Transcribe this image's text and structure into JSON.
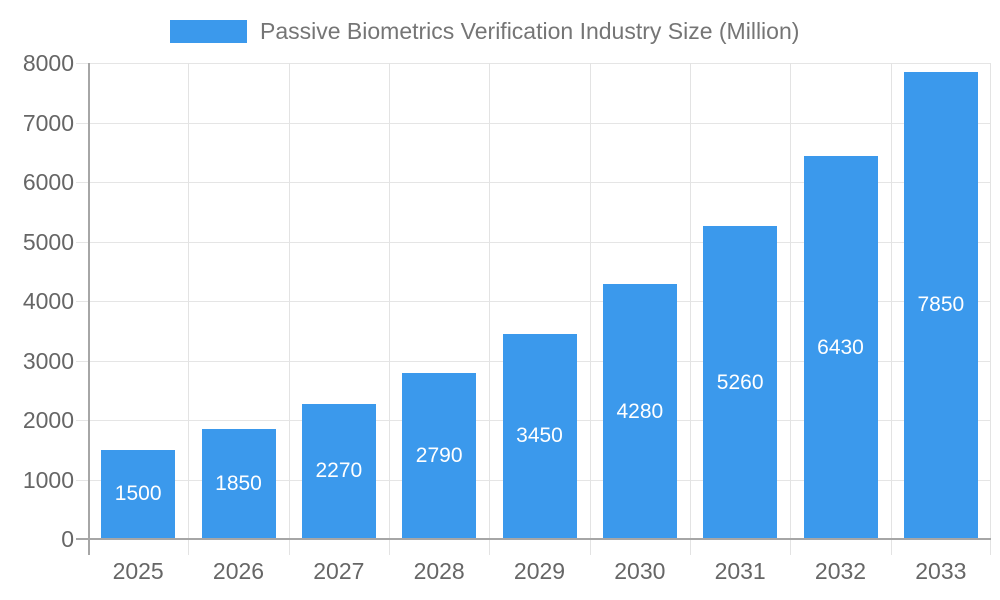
{
  "legend": {
    "label": "Passive Biometrics Verification Industry Size (Million)"
  },
  "colors": {
    "bar": "#3B99EC",
    "grid": "#e5e5e5",
    "axis": "#a6a6a6",
    "tick_text": "#666666",
    "legend_text": "#757575",
    "value_label": "#ffffff",
    "background": "#ffffff"
  },
  "chart_data": {
    "type": "bar",
    "title": "Passive Biometrics Verification Industry Size (Million)",
    "categories": [
      "2025",
      "2026",
      "2027",
      "2028",
      "2029",
      "2030",
      "2031",
      "2032",
      "2033"
    ],
    "values": [
      1500,
      1850,
      2270,
      2790,
      3450,
      4280,
      5260,
      6430,
      7850
    ],
    "value_labels_shown": [
      "1500",
      "1850",
      "2270",
      "2790",
      "3450",
      "4280",
      "5260",
      "6430",
      "7850"
    ],
    "xlabel": "",
    "ylabel": "",
    "ylim": [
      0,
      8000
    ],
    "ytick_step": 1000,
    "yticks": [
      "0",
      "1000",
      "2000",
      "3000",
      "4000",
      "5000",
      "6000",
      "7000",
      "8000"
    ],
    "grid": true,
    "legend_position": "top",
    "value_label_position": "inside-center",
    "bar_color": "#3B99EC"
  }
}
